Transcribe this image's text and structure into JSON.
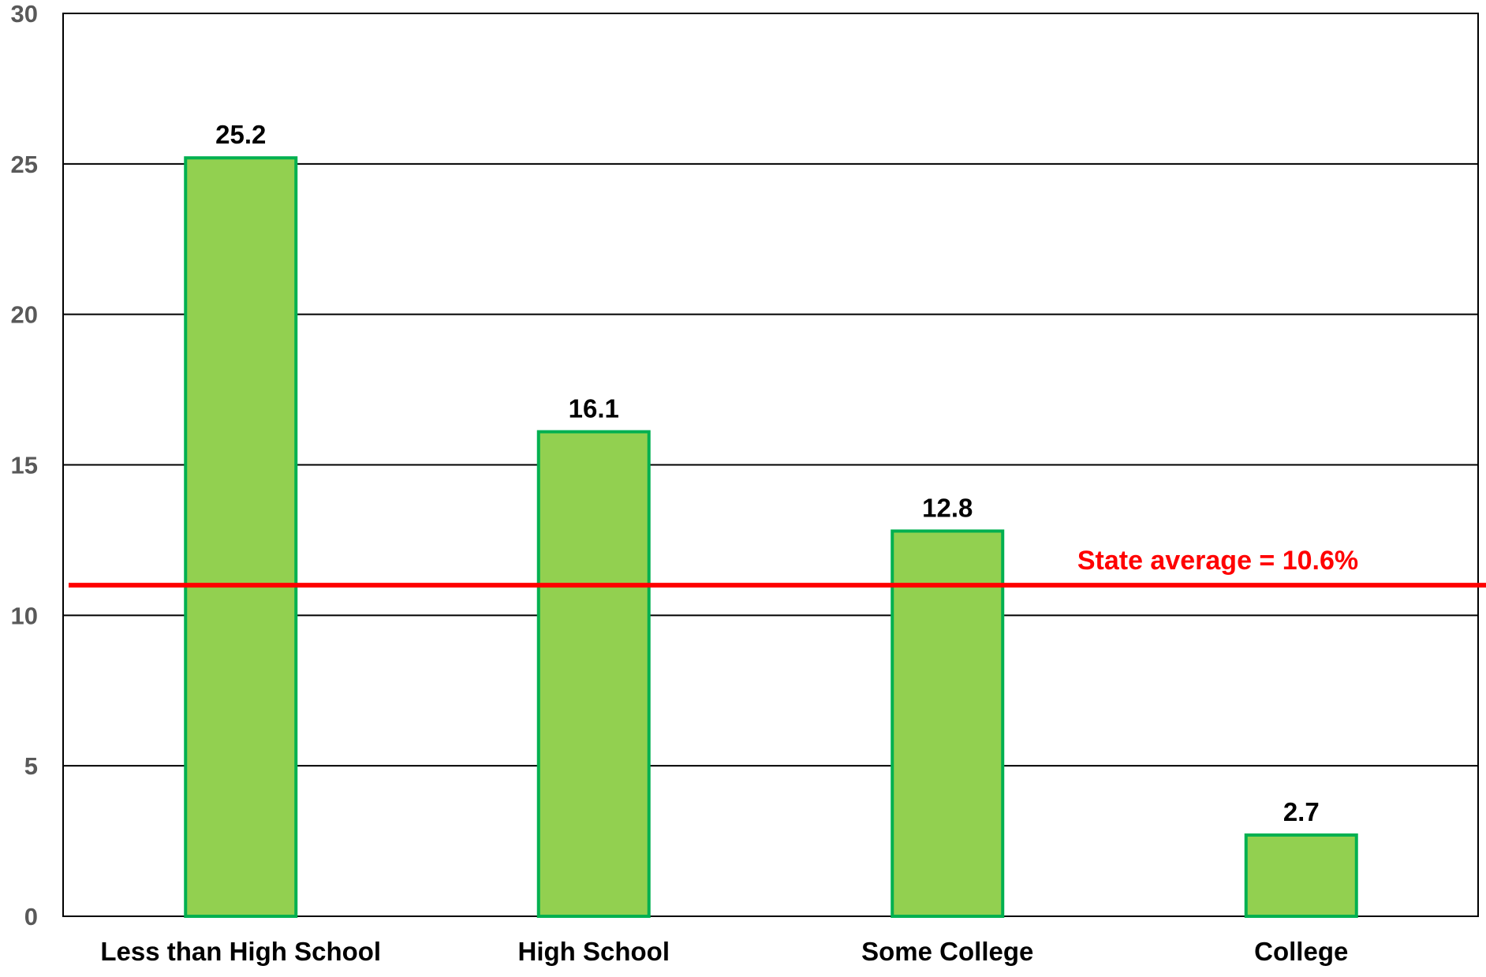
{
  "chart_data": {
    "type": "bar",
    "categories": [
      "Less than High School",
      "High School",
      "Some College",
      "College"
    ],
    "values": [
      25.2,
      16.1,
      12.8,
      2.7
    ],
    "value_labels": [
      "25.2",
      "16.1",
      "12.8",
      "2.7"
    ],
    "title": "",
    "xlabel": "",
    "ylabel": "",
    "ylim": [
      0,
      30
    ],
    "yticks": [
      "0",
      "5",
      "10",
      "15",
      "20",
      "25",
      "30"
    ],
    "grid": true,
    "legend": "none",
    "reference_line": {
      "value": 11,
      "label": "State average = 10.6%"
    },
    "colors": {
      "bar_fill": "#92d050",
      "bar_stroke": "#00b050",
      "reference_line": "#ff0000",
      "grid": "#000000",
      "tick_text": "#595959"
    }
  }
}
